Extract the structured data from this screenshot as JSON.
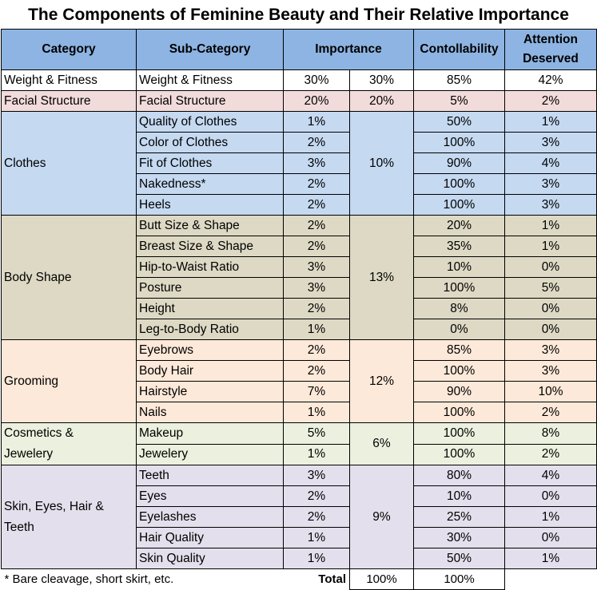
{
  "title": "The Components of Feminine Beauty and Their Relative Importance",
  "headers": {
    "category": "Category",
    "subcategory": "Sub-Category",
    "importance": "Importance",
    "controllability": "Contollability",
    "attention": "Attention Deserved"
  },
  "groups": [
    {
      "category": "Weight & Fitness",
      "total": "30%",
      "color": "#ffffff",
      "class": "white",
      "rows": [
        {
          "sub": "Weight & Fitness",
          "imp": "30%",
          "ctrl": "85%",
          "att": "42%"
        }
      ]
    },
    {
      "category": "Facial Structure",
      "total": "20%",
      "color": "#f2dcdb",
      "class": "pink",
      "rows": [
        {
          "sub": "Facial Structure",
          "imp": "20%",
          "ctrl": "5%",
          "att": "2%"
        }
      ]
    },
    {
      "category": "Clothes",
      "total": "10%",
      "color": "#c5d9f1",
      "class": "blue",
      "rows": [
        {
          "sub": "Quality of Clothes",
          "imp": "1%",
          "ctrl": "50%",
          "att": "1%"
        },
        {
          "sub": "Color of Clothes",
          "imp": "2%",
          "ctrl": "100%",
          "att": "3%"
        },
        {
          "sub": "Fit of Clothes",
          "imp": "3%",
          "ctrl": "90%",
          "att": "4%"
        },
        {
          "sub": "Nakedness*",
          "imp": "2%",
          "ctrl": "100%",
          "att": "3%"
        },
        {
          "sub": "Heels",
          "imp": "2%",
          "ctrl": "100%",
          "att": "3%"
        }
      ]
    },
    {
      "category": "Body Shape",
      "total": "13%",
      "color": "#ddd9c4",
      "class": "olive",
      "rows": [
        {
          "sub": "Butt Size & Shape",
          "imp": "2%",
          "ctrl": "20%",
          "att": "1%"
        },
        {
          "sub": "Breast Size & Shape",
          "imp": "2%",
          "ctrl": "35%",
          "att": "1%"
        },
        {
          "sub": "Hip-to-Waist Ratio",
          "imp": "3%",
          "ctrl": "10%",
          "att": "0%"
        },
        {
          "sub": "Posture",
          "imp": "3%",
          "ctrl": "100%",
          "att": "5%"
        },
        {
          "sub": "Height",
          "imp": "2%",
          "ctrl": "8%",
          "att": "0%"
        },
        {
          "sub": "Leg-to-Body Ratio",
          "imp": "1%",
          "ctrl": "0%",
          "att": "0%"
        }
      ]
    },
    {
      "category": "Grooming",
      "total": "12%",
      "color": "#fde9d9",
      "class": "peach",
      "rows": [
        {
          "sub": "Eyebrows",
          "imp": "2%",
          "ctrl": "85%",
          "att": "3%"
        },
        {
          "sub": "Body Hair",
          "imp": "2%",
          "ctrl": "100%",
          "att": "3%"
        },
        {
          "sub": "Hairstyle",
          "imp": "7%",
          "ctrl": "90%",
          "att": "10%"
        },
        {
          "sub": "Nails",
          "imp": "1%",
          "ctrl": "100%",
          "att": "2%"
        }
      ]
    },
    {
      "category": "Cosmetics & Jewelery",
      "total": "6%",
      "color": "#ebf1de",
      "class": "green",
      "rows": [
        {
          "sub": "Makeup",
          "imp": "5%",
          "ctrl": "100%",
          "att": "8%"
        },
        {
          "sub": "Jewelery",
          "imp": "1%",
          "ctrl": "100%",
          "att": "2%"
        }
      ]
    },
    {
      "category": "Skin, Eyes, Hair & Teeth",
      "total": "9%",
      "color": "#e4dfec",
      "class": "lav",
      "rows": [
        {
          "sub": "Teeth",
          "imp": "3%",
          "ctrl": "80%",
          "att": "4%"
        },
        {
          "sub": "Eyes",
          "imp": "2%",
          "ctrl": "10%",
          "att": "0%"
        },
        {
          "sub": "Eyelashes",
          "imp": "2%",
          "ctrl": "25%",
          "att": "1%"
        },
        {
          "sub": "Hair Quality",
          "imp": "1%",
          "ctrl": "30%",
          "att": "0%"
        },
        {
          "sub": "Skin Quality",
          "imp": "1%",
          "ctrl": "50%",
          "att": "1%"
        }
      ]
    }
  ],
  "footer": {
    "note": "* Bare cleavage, short skirt, etc.",
    "total_label": "Total",
    "total_importance": "100%",
    "total_group": "100%"
  }
}
